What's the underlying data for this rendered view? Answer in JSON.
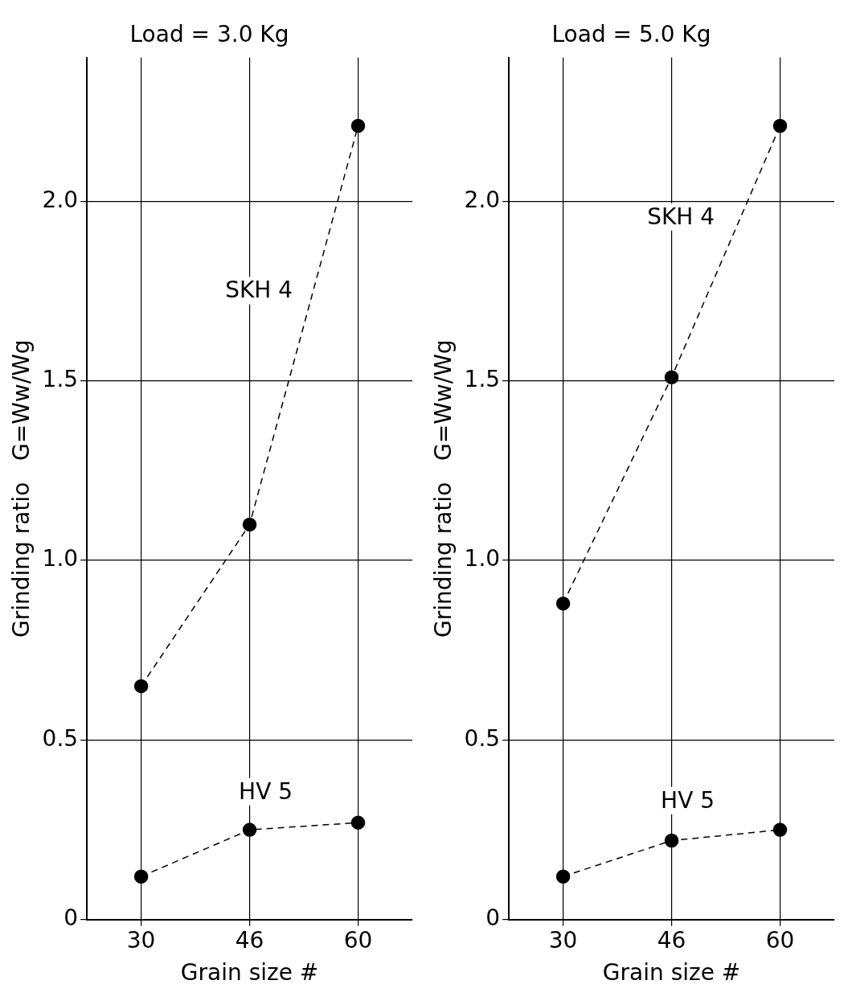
{
  "chart_data": [
    {
      "type": "line",
      "title": "Load = 3.0 Kg",
      "xlabel": "Grain size #",
      "ylabel": "Grinding ratio   G=Ww/Wg",
      "categories": [
        "30",
        "46",
        "60"
      ],
      "series": [
        {
          "name": "SKH 4",
          "color": "#000000",
          "values": [
            0.65,
            1.1,
            2.21
          ]
        },
        {
          "name": "HV 5",
          "color": "#000000",
          "values": [
            0.12,
            0.25,
            0.27
          ]
        }
      ],
      "ylim": [
        0,
        2.4
      ],
      "yticks": [
        0,
        {
          "value": 0.5,
          "label": "0.5"
        },
        {
          "value": 1,
          "label": "1.0"
        },
        {
          "value": 1.5,
          "label": "1.5"
        },
        {
          "value": 2,
          "label": "2.0"
        }
      ],
      "grid": true,
      "legend": false,
      "marker": "circle",
      "line_style": "dashed"
    },
    {
      "type": "line",
      "title": "Load = 5.0 Kg",
      "xlabel": "Grain size #",
      "ylabel": "Grinding ratio   G=Ww/Wg",
      "categories": [
        "30",
        "46",
        "60"
      ],
      "series": [
        {
          "name": "SKH 4",
          "color": "#000000",
          "values": [
            0.88,
            1.51,
            2.21
          ]
        },
        {
          "name": "HV 5",
          "color": "#000000",
          "values": [
            0.12,
            0.22,
            0.25
          ]
        }
      ],
      "ylim": [
        0,
        2.4
      ],
      "yticks": [
        0,
        {
          "value": 0.5,
          "label": "0.5"
        },
        {
          "value": 1,
          "label": "1.0"
        },
        {
          "value": 1.5,
          "label": "1.5"
        },
        {
          "value": 2,
          "label": "2.0"
        }
      ],
      "grid": true,
      "legend": false,
      "marker": "circle",
      "line_style": "dashed"
    }
  ]
}
